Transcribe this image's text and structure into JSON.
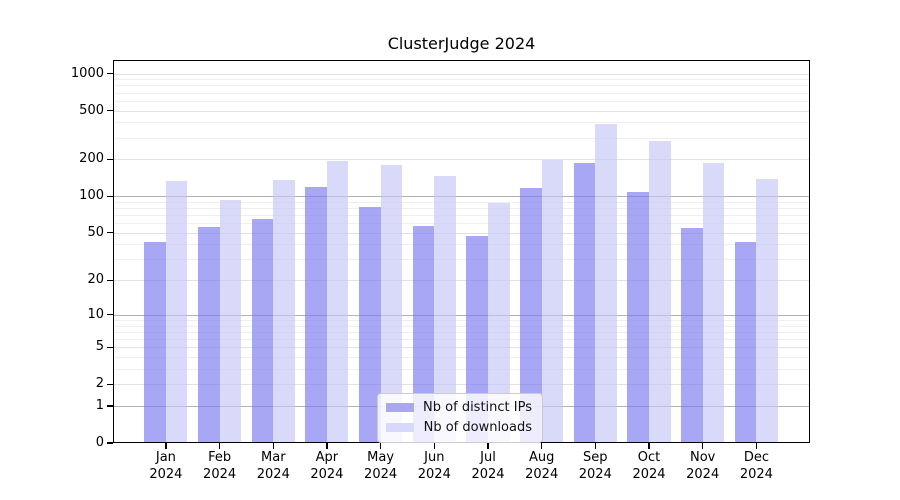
{
  "title": "ClusterJudge 2024",
  "chart_data": {
    "type": "bar",
    "title": "ClusterJudge 2024",
    "categories": [
      "Jan",
      "Feb",
      "Mar",
      "Apr",
      "May",
      "Jun",
      "Jul",
      "Aug",
      "Sep",
      "Oct",
      "Nov",
      "Dec"
    ],
    "category_year": "2024",
    "series": [
      {
        "name": "Nb of distinct IPs",
        "color": "rgba(120,120,240,0.65)",
        "swatch": "#a7a7f5",
        "values": [
          42,
          56,
          65,
          119,
          81,
          57,
          47,
          117,
          188,
          108,
          55,
          42
        ]
      },
      {
        "name": "Nb of downloads",
        "color": "rgba(196,196,247,0.65)",
        "swatch": "#d8d8fa",
        "values": [
          133,
          94,
          137,
          193,
          180,
          146,
          88,
          197,
          390,
          281,
          187,
          138
        ]
      }
    ],
    "xlabel": "",
    "ylabel": "",
    "yscale": "symlog (y proportional to ln(1+v))",
    "yticks": [
      0,
      1,
      2,
      5,
      10,
      20,
      50,
      100,
      200,
      500,
      1000
    ],
    "minor_yticks": [
      3,
      4,
      6,
      7,
      8,
      9,
      30,
      40,
      60,
      70,
      80,
      90,
      300,
      400,
      600,
      700,
      800,
      900
    ],
    "decade_ticks": [
      1,
      10,
      100
    ],
    "ymax": 1288,
    "grid": true,
    "legend_position": "lower center"
  },
  "colors": {
    "background": "#ffffff",
    "axis": "#000000",
    "grid_decade": "#b3b3b3",
    "grid_labeled": "#e2e2e2",
    "grid_minor": "#efefef",
    "ips_bar": "rgba(120,120,240,0.65)",
    "downloads_bar": "rgba(196,196,247,0.65)"
  }
}
